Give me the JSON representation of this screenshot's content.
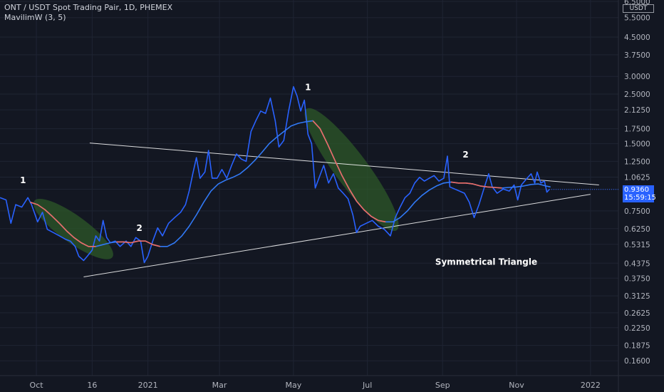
{
  "header": {
    "title": "ONT / USDT Spot Trading Pair, 1D, PHEMEX",
    "indicator": "MavilimW (3, 5)"
  },
  "price_axis": {
    "unit": "USDT",
    "current_price": "0.9360",
    "countdown": "15:59:15"
  },
  "annotations": {
    "pattern_label": "Symmetrical Triangle",
    "wave_labels": [
      "1",
      "2",
      "1",
      "2"
    ]
  },
  "colors": {
    "background": "#131722",
    "price_line": "#2962ff",
    "mavilim_up": "#3179f5",
    "mavilim_down": "#ef6c61",
    "highlight": "#2e5a28",
    "trendline": "#ffffff",
    "grid": "#1f2433",
    "axis_text": "#b2b5be"
  },
  "chart_data": {
    "type": "line",
    "title": "ONT / USDT Spot Trading Pair, 1D, PHEMEX",
    "log_scale": true,
    "grid": true,
    "ylim": [
      0.15,
      6.5
    ],
    "y_ticks": [
      "6.5000",
      "5.5000",
      "4.5000",
      "3.7500",
      "3.0000",
      "2.5000",
      "2.1250",
      "1.7500",
      "1.5000",
      "1.2500",
      "1.0625",
      "0.9375",
      "0.7500",
      "0.6250",
      "0.5315",
      "0.4375",
      "0.3750",
      "0.3125",
      "0.2625",
      "0.2250",
      "0.1875",
      "0.1600"
    ],
    "x_ticks": [
      "Oct",
      "16",
      "2021",
      "Mar",
      "May",
      "Jul",
      "Sep",
      "Nov",
      "2022"
    ],
    "x_tick_dates": [
      "2020-10-01",
      "2020-11-16",
      "2021-01-01",
      "2021-03-01",
      "2021-05-01",
      "2021-07-01",
      "2021-09-01",
      "2021-11-01",
      "2022-01-01"
    ],
    "xlim": [
      "2020-09-01",
      "2022-01-24"
    ],
    "series": [
      {
        "kind": "price",
        "points": [
          [
            "2020-09-01",
            0.86
          ],
          [
            "2020-09-06",
            0.84
          ],
          [
            "2020-09-10",
            0.66
          ],
          [
            "2020-09-14",
            0.8
          ],
          [
            "2020-09-19",
            0.78
          ],
          [
            "2020-09-24",
            0.86
          ],
          [
            "2020-09-27",
            0.8
          ],
          [
            "2020-10-02",
            0.67
          ],
          [
            "2020-10-06",
            0.74
          ],
          [
            "2020-10-10",
            0.62
          ],
          [
            "2020-10-15",
            0.6
          ],
          [
            "2020-10-20",
            0.58
          ],
          [
            "2020-10-25",
            0.56
          ],
          [
            "2020-10-29",
            0.55
          ],
          [
            "2020-11-02",
            0.52
          ],
          [
            "2020-11-05",
            0.47
          ],
          [
            "2020-11-09",
            0.45
          ],
          [
            "2020-11-12",
            0.47
          ],
          [
            "2020-11-16",
            0.5
          ],
          [
            "2020-11-19",
            0.58
          ],
          [
            "2020-11-22",
            0.55
          ],
          [
            "2020-11-25",
            0.68
          ],
          [
            "2020-11-28",
            0.57
          ],
          [
            "2020-12-01",
            0.54
          ],
          [
            "2020-12-05",
            0.55
          ],
          [
            "2020-12-09",
            0.52
          ],
          [
            "2020-12-14",
            0.55
          ],
          [
            "2020-12-18",
            0.52
          ],
          [
            "2020-12-22",
            0.57
          ],
          [
            "2020-12-26",
            0.55
          ],
          [
            "2020-12-29",
            0.44
          ],
          [
            "2021-01-01",
            0.47
          ],
          [
            "2021-01-05",
            0.55
          ],
          [
            "2021-01-09",
            0.63
          ],
          [
            "2021-01-13",
            0.58
          ],
          [
            "2021-01-18",
            0.66
          ],
          [
            "2021-01-23",
            0.7
          ],
          [
            "2021-01-28",
            0.74
          ],
          [
            "2021-02-01",
            0.8
          ],
          [
            "2021-02-04",
            0.92
          ],
          [
            "2021-02-07",
            1.1
          ],
          [
            "2021-02-10",
            1.3
          ],
          [
            "2021-02-13",
            1.05
          ],
          [
            "2021-02-17",
            1.12
          ],
          [
            "2021-02-20",
            1.4
          ],
          [
            "2021-02-23",
            1.05
          ],
          [
            "2021-02-27",
            1.05
          ],
          [
            "2021-03-03",
            1.15
          ],
          [
            "2021-03-07",
            1.05
          ],
          [
            "2021-03-11",
            1.2
          ],
          [
            "2021-03-15",
            1.35
          ],
          [
            "2021-03-19",
            1.28
          ],
          [
            "2021-03-23",
            1.25
          ],
          [
            "2021-03-27",
            1.7
          ],
          [
            "2021-03-31",
            1.9
          ],
          [
            "2021-04-04",
            2.1
          ],
          [
            "2021-04-08",
            2.05
          ],
          [
            "2021-04-12",
            2.4
          ],
          [
            "2021-04-16",
            1.9
          ],
          [
            "2021-04-19",
            1.45
          ],
          [
            "2021-04-23",
            1.55
          ],
          [
            "2021-04-27",
            2.1
          ],
          [
            "2021-05-01",
            2.7
          ],
          [
            "2021-05-04",
            2.45
          ],
          [
            "2021-05-07",
            2.1
          ],
          [
            "2021-05-10",
            2.35
          ],
          [
            "2021-05-13",
            1.65
          ],
          [
            "2021-05-16",
            1.5
          ],
          [
            "2021-05-19",
            0.95
          ],
          [
            "2021-05-22",
            1.05
          ],
          [
            "2021-05-26",
            1.2
          ],
          [
            "2021-05-30",
            1.0
          ],
          [
            "2021-06-03",
            1.1
          ],
          [
            "2021-06-07",
            0.95
          ],
          [
            "2021-06-11",
            0.9
          ],
          [
            "2021-06-15",
            0.85
          ],
          [
            "2021-06-19",
            0.72
          ],
          [
            "2021-06-22",
            0.6
          ],
          [
            "2021-06-25",
            0.64
          ],
          [
            "2021-06-30",
            0.66
          ],
          [
            "2021-07-05",
            0.68
          ],
          [
            "2021-07-10",
            0.64
          ],
          [
            "2021-07-15",
            0.62
          ],
          [
            "2021-07-20",
            0.58
          ],
          [
            "2021-07-24",
            0.7
          ],
          [
            "2021-07-28",
            0.78
          ],
          [
            "2021-08-01",
            0.86
          ],
          [
            "2021-08-05",
            0.9
          ],
          [
            "2021-08-09",
            1.0
          ],
          [
            "2021-08-13",
            1.06
          ],
          [
            "2021-08-17",
            1.02
          ],
          [
            "2021-08-21",
            1.05
          ],
          [
            "2021-08-25",
            1.08
          ],
          [
            "2021-08-29",
            1.02
          ],
          [
            "2021-09-02",
            1.05
          ],
          [
            "2021-09-05",
            1.32
          ],
          [
            "2021-09-07",
            0.96
          ],
          [
            "2021-09-11",
            0.94
          ],
          [
            "2021-09-15",
            0.92
          ],
          [
            "2021-09-19",
            0.9
          ],
          [
            "2021-09-23",
            0.82
          ],
          [
            "2021-09-27",
            0.7
          ],
          [
            "2021-10-01",
            0.8
          ],
          [
            "2021-10-05",
            0.94
          ],
          [
            "2021-10-09",
            1.1
          ],
          [
            "2021-10-12",
            0.96
          ],
          [
            "2021-10-16",
            0.9
          ],
          [
            "2021-10-21",
            0.94
          ],
          [
            "2021-10-26",
            0.92
          ],
          [
            "2021-10-30",
            0.98
          ],
          [
            "2021-11-02",
            0.84
          ],
          [
            "2021-11-05",
            0.98
          ],
          [
            "2021-11-09",
            1.04
          ],
          [
            "2021-11-13",
            1.1
          ],
          [
            "2021-11-16",
            1.0
          ],
          [
            "2021-11-18",
            1.12
          ],
          [
            "2021-11-21",
            1.0
          ],
          [
            "2021-11-24",
            1.02
          ],
          [
            "2021-11-26",
            0.91
          ],
          [
            "2021-11-28",
            0.936
          ]
        ]
      },
      {
        "kind": "MavilimW",
        "points": [
          [
            "2020-09-26",
            0.82
          ],
          [
            "2020-10-02",
            0.8
          ],
          [
            "2020-10-08",
            0.76
          ],
          [
            "2020-10-14",
            0.71
          ],
          [
            "2020-10-20",
            0.66
          ],
          [
            "2020-10-26",
            0.61
          ],
          [
            "2020-11-01",
            0.57
          ],
          [
            "2020-11-07",
            0.54
          ],
          [
            "2020-11-13",
            0.52
          ],
          [
            "2020-11-19",
            0.52
          ],
          [
            "2020-11-25",
            0.53
          ],
          [
            "2020-12-01",
            0.54
          ],
          [
            "2020-12-06",
            0.545
          ],
          [
            "2020-12-12",
            0.545
          ],
          [
            "2020-12-18",
            0.54
          ],
          [
            "2020-12-24",
            0.55
          ],
          [
            "2020-12-30",
            0.55
          ],
          [
            "2021-01-05",
            0.53
          ],
          [
            "2021-01-11",
            0.52
          ],
          [
            "2021-01-17",
            0.52
          ],
          [
            "2021-01-23",
            0.54
          ],
          [
            "2021-01-29",
            0.58
          ],
          [
            "2021-02-04",
            0.64
          ],
          [
            "2021-02-10",
            0.72
          ],
          [
            "2021-02-16",
            0.82
          ],
          [
            "2021-02-22",
            0.92
          ],
          [
            "2021-02-28",
            0.99
          ],
          [
            "2021-03-06",
            1.03
          ],
          [
            "2021-03-12",
            1.06
          ],
          [
            "2021-03-18",
            1.1
          ],
          [
            "2021-03-24",
            1.17
          ],
          [
            "2021-03-30",
            1.26
          ],
          [
            "2021-04-05",
            1.37
          ],
          [
            "2021-04-11",
            1.5
          ],
          [
            "2021-04-17",
            1.6
          ],
          [
            "2021-04-23",
            1.7
          ],
          [
            "2021-04-29",
            1.8
          ],
          [
            "2021-05-05",
            1.85
          ],
          [
            "2021-05-11",
            1.88
          ],
          [
            "2021-05-17",
            1.9
          ],
          [
            "2021-05-23",
            1.75
          ],
          [
            "2021-05-29",
            1.5
          ],
          [
            "2021-06-04",
            1.27
          ],
          [
            "2021-06-10",
            1.08
          ],
          [
            "2021-06-16",
            0.94
          ],
          [
            "2021-06-22",
            0.83
          ],
          [
            "2021-06-28",
            0.76
          ],
          [
            "2021-07-04",
            0.71
          ],
          [
            "2021-07-10",
            0.68
          ],
          [
            "2021-07-16",
            0.67
          ],
          [
            "2021-07-22",
            0.67
          ],
          [
            "2021-07-28",
            0.7
          ],
          [
            "2021-08-03",
            0.75
          ],
          [
            "2021-08-09",
            0.82
          ],
          [
            "2021-08-15",
            0.88
          ],
          [
            "2021-08-21",
            0.93
          ],
          [
            "2021-08-27",
            0.97
          ],
          [
            "2021-09-02",
            1.0
          ],
          [
            "2021-09-08",
            1.01
          ],
          [
            "2021-09-14",
            1.0
          ],
          [
            "2021-09-20",
            1.0
          ],
          [
            "2021-09-26",
            0.99
          ],
          [
            "2021-10-02",
            0.97
          ],
          [
            "2021-10-08",
            0.96
          ],
          [
            "2021-10-14",
            0.955
          ],
          [
            "2021-10-20",
            0.95
          ],
          [
            "2021-10-26",
            0.955
          ],
          [
            "2021-11-01",
            0.96
          ],
          [
            "2021-11-07",
            0.97
          ],
          [
            "2021-11-13",
            0.985
          ],
          [
            "2021-11-19",
            0.99
          ],
          [
            "2021-11-25",
            0.97
          ],
          [
            "2021-11-29",
            0.96
          ]
        ],
        "down_segments": [
          [
            "2020-09-26",
            "2020-11-19"
          ],
          [
            "2020-12-06",
            "2021-01-11"
          ],
          [
            "2021-05-17",
            "2021-07-16"
          ],
          [
            "2021-09-08",
            "2021-10-20"
          ]
        ]
      }
    ],
    "trendlines": [
      {
        "from": [
          "2020-11-14",
          1.51
        ],
        "to": [
          "2022-01-08",
          0.98
        ]
      },
      {
        "from": [
          "2020-11-09",
          0.38
        ],
        "to": [
          "2022-01-01",
          0.89
        ]
      }
    ],
    "highlights": [
      {
        "from": [
          "2020-10-05",
          0.79
        ],
        "to": [
          "2020-11-27",
          0.49
        ]
      },
      {
        "from": [
          "2021-05-16",
          2.0
        ],
        "to": [
          "2021-07-21",
          0.66
        ]
      }
    ],
    "wave_label_points": [
      [
        "2020-09-20",
        1.0
      ],
      [
        "2020-12-25",
        0.61
      ],
      [
        "2021-05-13",
        2.6
      ],
      [
        "2021-09-20",
        1.3
      ]
    ],
    "pattern_label_point": [
      "2021-10-07",
      0.43
    ]
  }
}
